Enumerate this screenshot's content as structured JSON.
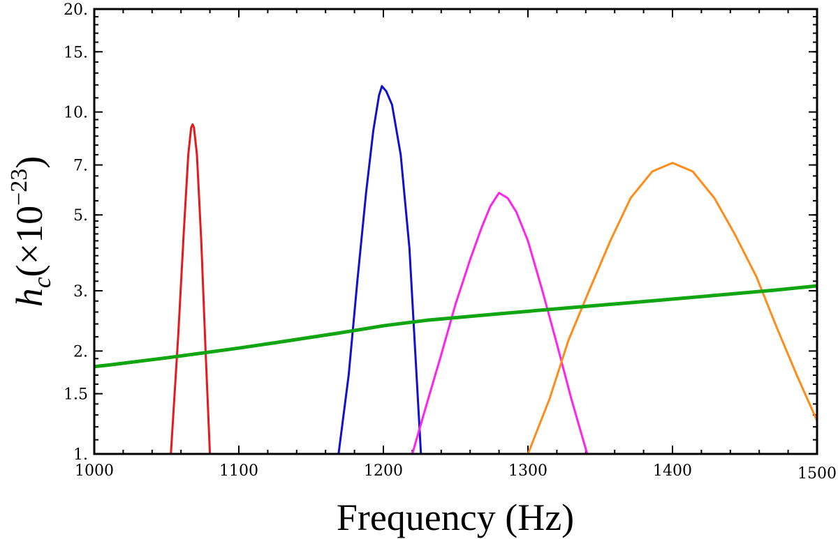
{
  "chart_data": {
    "type": "line",
    "xlabel": "Frequency (Hz)",
    "ylabel_main": "h",
    "ylabel_sub": "c",
    "ylabel_paren": "(×10",
    "ylabel_exp": "−23",
    "ylabel_close": ")",
    "xlim": [
      1000,
      1500
    ],
    "ylim": [
      1,
      20
    ],
    "yscale": "log",
    "x_ticks": [
      {
        "value": 1000,
        "label": "1000"
      },
      {
        "value": 1100,
        "label": "1100"
      },
      {
        "value": 1200,
        "label": "1200"
      },
      {
        "value": 1300,
        "label": "1300"
      },
      {
        "value": 1400,
        "label": "1400"
      },
      {
        "value": 1500,
        "label": "1500"
      }
    ],
    "y_ticks": [
      {
        "value": 1,
        "label": "1."
      },
      {
        "value": 1.5,
        "label": "1.5"
      },
      {
        "value": 2,
        "label": "2."
      },
      {
        "value": 3,
        "label": "3."
      },
      {
        "value": 5,
        "label": "5."
      },
      {
        "value": 7,
        "label": "7."
      },
      {
        "value": 10,
        "label": "10."
      },
      {
        "value": 15,
        "label": "15."
      },
      {
        "value": 20,
        "label": "20."
      }
    ],
    "series": [
      {
        "name": "red-peak",
        "color": "#e41a1c",
        "x": [
          1053,
          1058,
          1062,
          1065,
          1067,
          1068,
          1069,
          1071,
          1074,
          1077,
          1080
        ],
        "y": [
          1.0,
          2.2,
          4.5,
          7.5,
          9.0,
          9.2,
          9.0,
          7.5,
          4.2,
          2.0,
          1.0
        ]
      },
      {
        "name": "blue-peak",
        "color": "#1010d0",
        "x": [
          1169,
          1176,
          1182,
          1188,
          1193,
          1197,
          1199,
          1202,
          1206,
          1212,
          1218,
          1226
        ],
        "y": [
          1.0,
          1.7,
          3.2,
          5.8,
          8.8,
          11.2,
          11.9,
          11.5,
          10.5,
          7.5,
          4.0,
          1.0
        ]
      },
      {
        "name": "magenta-peak",
        "color": "#ff22ee",
        "x": [
          1220,
          1230,
          1240,
          1250,
          1260,
          1268,
          1274,
          1280,
          1286,
          1292,
          1300,
          1310,
          1320,
          1330,
          1341
        ],
        "y": [
          1.0,
          1.4,
          1.95,
          2.75,
          3.7,
          4.6,
          5.3,
          5.8,
          5.6,
          5.1,
          4.2,
          3.0,
          2.1,
          1.45,
          1.0
        ]
      },
      {
        "name": "orange-peak",
        "color": "#ff8c1a",
        "x": [
          1300,
          1315,
          1328,
          1343,
          1357,
          1371,
          1386,
          1400,
          1414,
          1429,
          1443,
          1458,
          1472,
          1486,
          1500
        ],
        "y": [
          1.0,
          1.45,
          2.15,
          3.05,
          4.2,
          5.6,
          6.7,
          7.1,
          6.7,
          5.6,
          4.4,
          3.3,
          2.35,
          1.7,
          1.25
        ]
      },
      {
        "name": "green-threshold",
        "color": "#11a611",
        "x": [
          1000,
          1010,
          1050,
          1100,
          1130,
          1170,
          1200,
          1230,
          1280,
          1330,
          1380,
          1430,
          1470,
          1500
        ],
        "y": [
          1.8,
          1.82,
          1.91,
          2.04,
          2.13,
          2.26,
          2.37,
          2.46,
          2.57,
          2.68,
          2.79,
          2.91,
          3.01,
          3.1
        ]
      }
    ]
  }
}
